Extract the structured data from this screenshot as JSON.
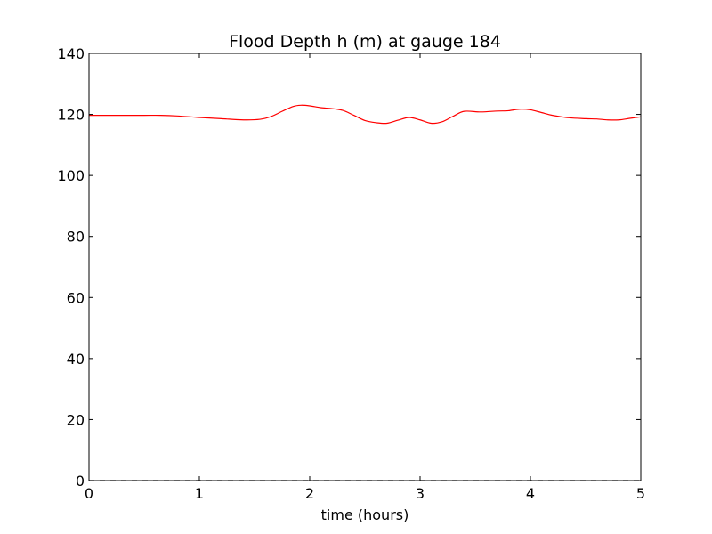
{
  "chart_data": {
    "type": "line",
    "title": "Flood Depth h (m) at gauge 184",
    "xlabel": "time (hours)",
    "ylabel": "",
    "xlim": [
      0,
      5
    ],
    "ylim": [
      0,
      140
    ],
    "x_ticks": [
      0,
      1,
      2,
      3,
      4,
      5
    ],
    "y_ticks": [
      0,
      20,
      40,
      60,
      80,
      100,
      120,
      140
    ],
    "x_tick_labels": [
      "0",
      "1",
      "2",
      "3",
      "4",
      "5"
    ],
    "y_tick_labels": [
      "0",
      "20",
      "40",
      "60",
      "80",
      "100",
      "120",
      "140"
    ],
    "grid": false,
    "legend": "none",
    "series": [
      {
        "color": "#ff0000",
        "style": "solid",
        "x": [
          0,
          0.25,
          0.5,
          0.65,
          0.8,
          1.0,
          1.2,
          1.4,
          1.55,
          1.65,
          1.75,
          1.85,
          1.92,
          2.0,
          2.1,
          2.2,
          2.3,
          2.4,
          2.5,
          2.6,
          2.7,
          2.8,
          2.9,
          3.0,
          3.1,
          3.2,
          3.3,
          3.4,
          3.55,
          3.7,
          3.8,
          3.9,
          4.0,
          4.1,
          4.2,
          4.35,
          4.5,
          4.6,
          4.7,
          4.8,
          4.9,
          5.0
        ],
        "y": [
          119.7,
          119.7,
          119.7,
          119.7,
          119.5,
          119.0,
          118.6,
          118.2,
          118.4,
          119.3,
          121.0,
          122.6,
          123.0,
          122.8,
          122.2,
          121.9,
          121.3,
          119.7,
          118.0,
          117.3,
          117.1,
          118.1,
          119.0,
          118.2,
          117.1,
          117.6,
          119.4,
          121.0,
          120.8,
          121.1,
          121.2,
          121.7,
          121.5,
          120.6,
          119.7,
          118.9,
          118.6,
          118.5,
          118.2,
          118.2,
          118.7,
          119.2
        ]
      },
      {
        "color": "#000000",
        "style": "dashed",
        "x": [
          0,
          5
        ],
        "y": [
          0,
          0
        ]
      }
    ]
  }
}
